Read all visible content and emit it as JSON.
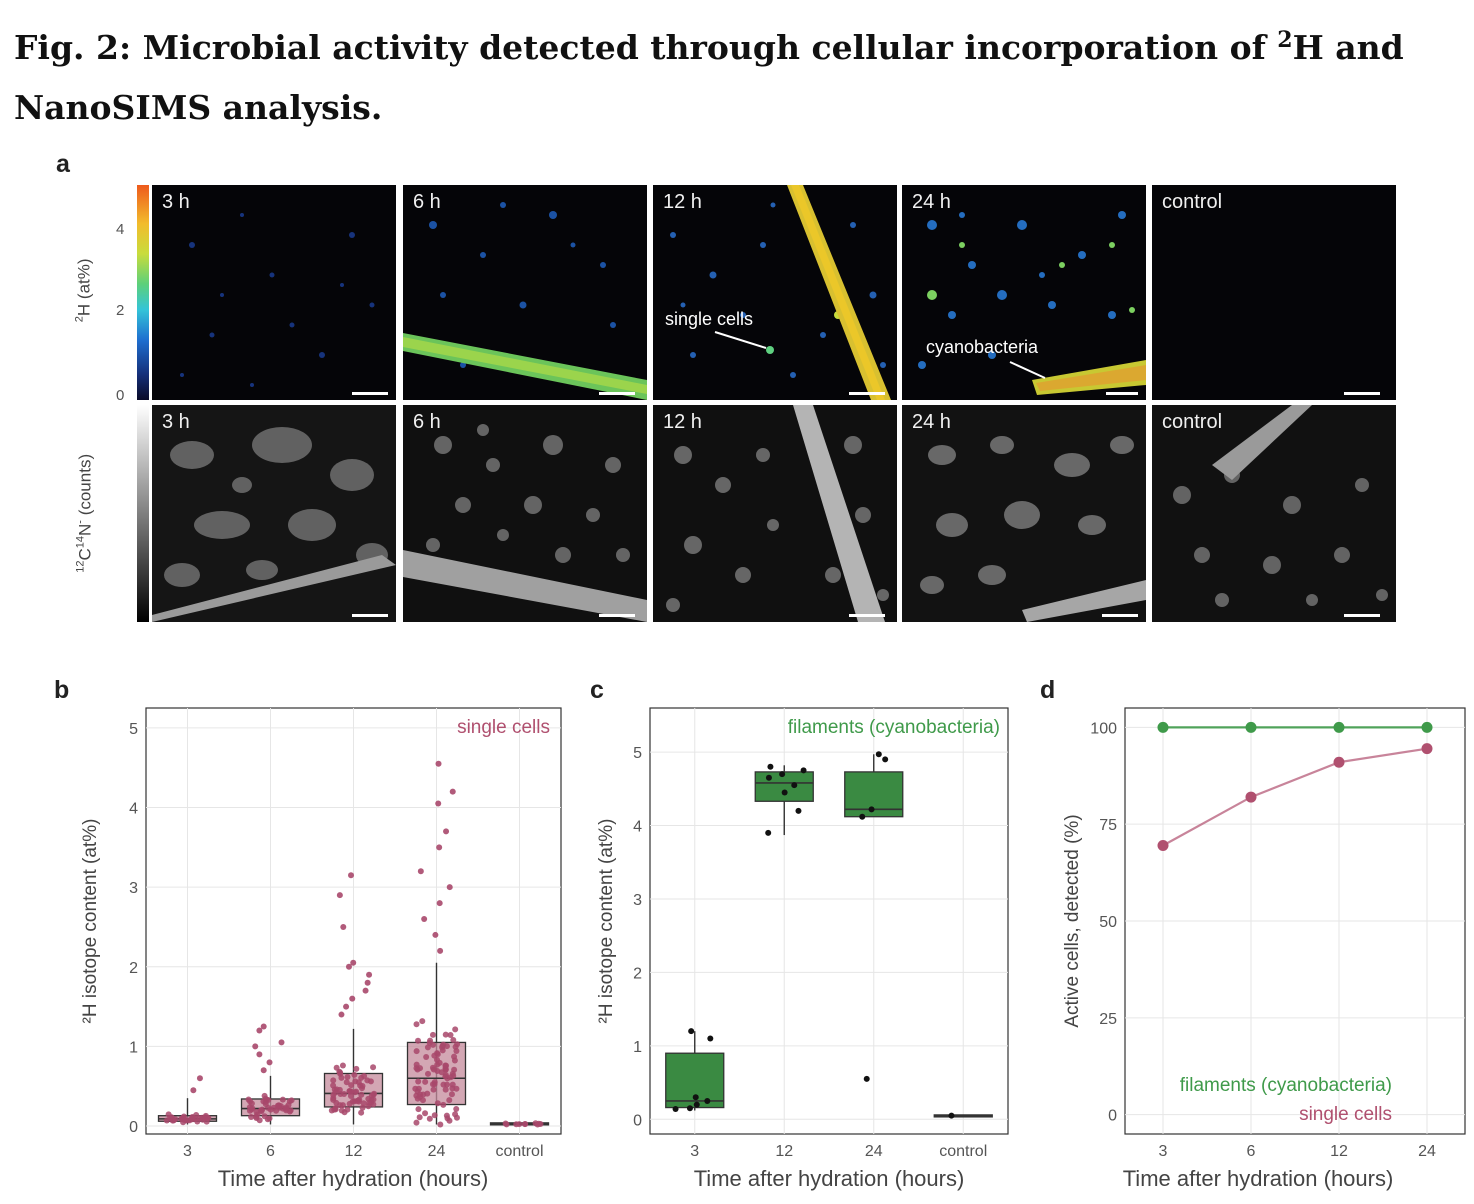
{
  "figure": {
    "title_prefix": "Fig. 2: Microbial activity detected through cellular incorporation of ",
    "title_sup": "2",
    "title_suffix": "H and NanoSIMS analysis."
  },
  "panel_a": {
    "label": "a",
    "colorbar_top": {
      "title_sup": "2",
      "title": "H (at%)",
      "ticks": [
        "4",
        "2",
        "0"
      ]
    },
    "colorbar_bottom": {
      "title_sup1": "12",
      "title_mid": "C",
      "title_sup2": "14",
      "title_end": "N",
      "title_sup3": "-",
      "title_tail": " (counts)"
    },
    "top_labels": [
      "3 h",
      "6 h",
      "12 h",
      "24 h",
      "control"
    ],
    "bottom_labels": [
      "3 h",
      "6 h",
      "12 h",
      "24 h",
      "control"
    ],
    "annotations": {
      "single_cells": "single cells",
      "cyanobacteria": "cyanobacteria"
    }
  },
  "panel_b": {
    "label": "b",
    "legend": "single cells",
    "xlabel": "Time after hydration (hours)",
    "ylabel": "²H isotope content (at%)",
    "ticks": [
      "0",
      "1",
      "2",
      "3",
      "4",
      "5"
    ],
    "colors": {
      "box": "#c48a9b",
      "point": "#a8486b",
      "line": "#333333",
      "legend": "#b0506f"
    }
  },
  "panel_c": {
    "label": "c",
    "legend": "filaments (cyanobacteria)",
    "xlabel": "Time after hydration (hours)",
    "ylabel": "²H isotope content (at%)",
    "ticks": [
      "0",
      "1",
      "2",
      "3",
      "4",
      "5"
    ],
    "colors": {
      "box": "#3a8a42",
      "point": "#111111",
      "legend": "#3f9a4a"
    }
  },
  "panel_d": {
    "label": "d",
    "xlabel": "Time after hydration (hours)",
    "ylabel": "Active cells, detected (%)",
    "ticks": [
      "0",
      "25",
      "50",
      "75",
      "100"
    ],
    "legend_filaments": "filaments (cyanobacteria)",
    "legend_single": "single cells",
    "colors": {
      "filaments": "#3f9a4a",
      "single": "#b0506f"
    }
  },
  "chart_data": [
    {
      "panel": "b",
      "type": "box",
      "title": "single cells",
      "xlabel": "Time after hydration (hours)",
      "ylabel": "²H isotope content (at%)",
      "categories": [
        "3",
        "6",
        "12",
        "24",
        "control"
      ],
      "ylim": [
        -0.1,
        5.25
      ],
      "boxes": [
        {
          "category": "3",
          "q1": 0.06,
          "median": 0.09,
          "q3": 0.13,
          "whisker_low": 0.02,
          "whisker_high": 0.35
        },
        {
          "category": "6",
          "q1": 0.13,
          "median": 0.22,
          "q3": 0.34,
          "whisker_low": 0.02,
          "whisker_high": 0.63
        },
        {
          "category": "12",
          "q1": 0.24,
          "median": 0.41,
          "q3": 0.66,
          "whisker_low": 0.02,
          "whisker_high": 1.22
        },
        {
          "category": "24",
          "q1": 0.27,
          "median": 0.6,
          "q3": 1.05,
          "whisker_low": 0.02,
          "whisker_high": 2.05
        },
        {
          "category": "control",
          "q1": 0.02,
          "median": 0.03,
          "q3": 0.04,
          "whisker_low": 0.01,
          "whisker_high": 0.05
        }
      ],
      "outliers": [
        {
          "category": "3",
          "values": [
            0.45,
            0.6
          ]
        },
        {
          "category": "6",
          "values": [
            0.7,
            0.8,
            0.9,
            1.0,
            1.05,
            1.2,
            1.25
          ]
        },
        {
          "category": "12",
          "values": [
            1.4,
            1.5,
            1.6,
            1.7,
            1.8,
            1.9,
            2.0,
            2.05,
            2.5,
            2.9,
            3.15
          ]
        },
        {
          "category": "24",
          "values": [
            2.2,
            2.4,
            2.6,
            2.8,
            3.0,
            3.2,
            3.5,
            3.7,
            4.05,
            4.2,
            4.55
          ]
        }
      ]
    },
    {
      "panel": "c",
      "type": "box",
      "title": "filaments (cyanobacteria)",
      "xlabel": "Time after hydration (hours)",
      "ylabel": "²H isotope content (at%)",
      "categories": [
        "3",
        "12",
        "24",
        "control"
      ],
      "ylim": [
        -0.2,
        5.6
      ],
      "boxes": [
        {
          "category": "3",
          "q1": 0.16,
          "median": 0.25,
          "q3": 0.9,
          "whisker_low": 0.12,
          "whisker_high": 1.2
        },
        {
          "category": "12",
          "q1": 4.33,
          "median": 4.58,
          "q3": 4.73,
          "whisker_low": 3.87,
          "whisker_high": 4.82
        },
        {
          "category": "24",
          "q1": 4.12,
          "median": 4.22,
          "q3": 4.73,
          "whisker_low": 4.12,
          "whisker_high": 4.97
        },
        {
          "category": "control",
          "q1": 0.04,
          "median": 0.05,
          "q3": 0.06,
          "whisker_low": 0.04,
          "whisker_high": 0.06
        }
      ],
      "points": [
        {
          "category": "3",
          "values": [
            1.2,
            1.1,
            0.3,
            0.25,
            0.2,
            0.15,
            0.14
          ]
        },
        {
          "category": "12",
          "values": [
            4.8,
            4.75,
            4.7,
            4.65,
            4.55,
            4.45,
            4.2,
            3.9
          ]
        },
        {
          "category": "24",
          "values": [
            4.97,
            4.9,
            4.22,
            4.12,
            0.55
          ]
        },
        {
          "category": "control",
          "values": [
            0.05
          ]
        }
      ]
    },
    {
      "panel": "d",
      "type": "line",
      "xlabel": "Time after hydration (hours)",
      "ylabel": "Active cells, detected (%)",
      "categories": [
        "3",
        "6",
        "12",
        "24"
      ],
      "ylim": [
        -5,
        105
      ],
      "series": [
        {
          "name": "filaments (cyanobacteria)",
          "values": [
            100,
            100,
            100,
            100
          ]
        },
        {
          "name": "single cells",
          "values": [
            69.5,
            82,
            91,
            94.5
          ]
        }
      ]
    }
  ]
}
